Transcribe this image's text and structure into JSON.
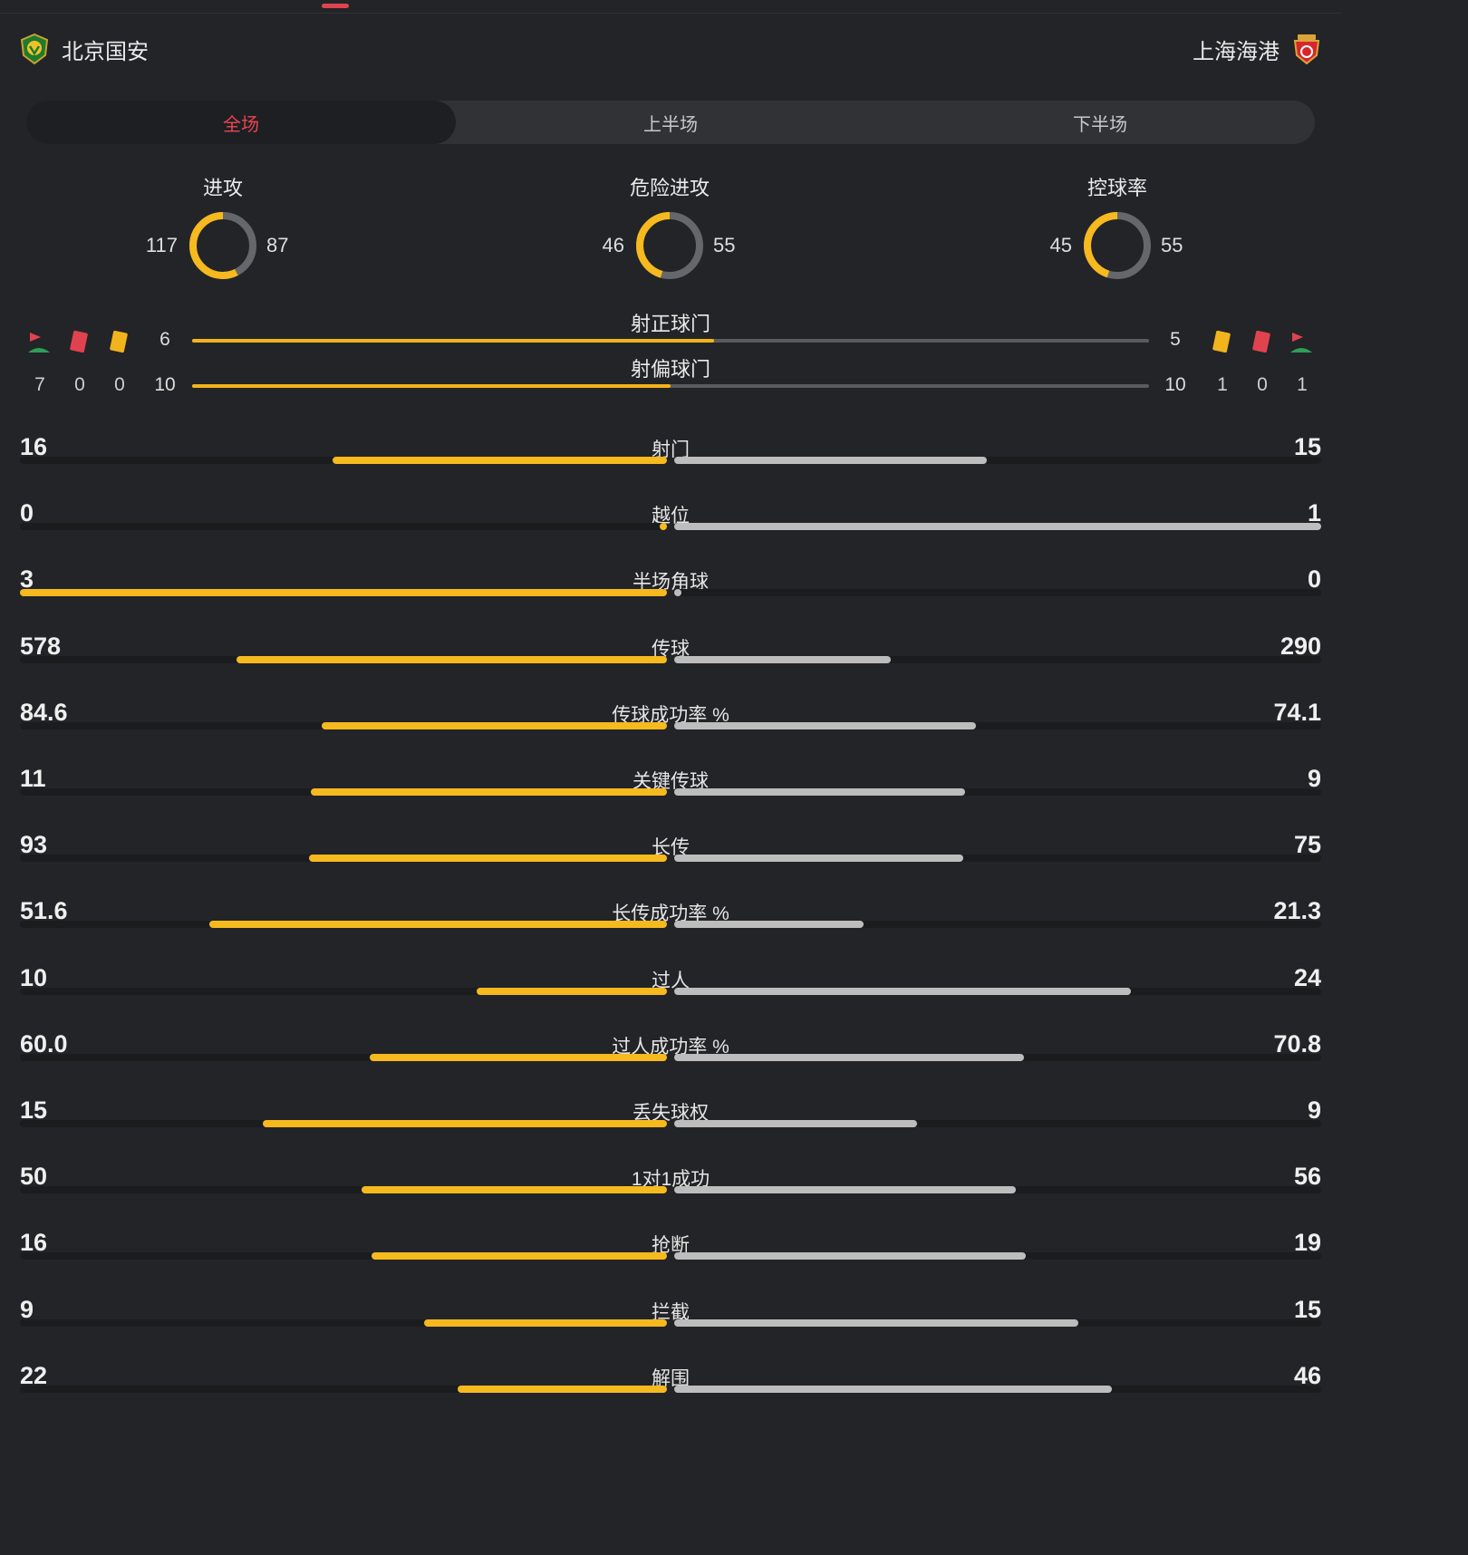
{
  "teams": {
    "home": "北京国安",
    "away": "上海海港"
  },
  "tabs": [
    "全场",
    "上半场",
    "下半场"
  ],
  "active_tab": 0,
  "colors": {
    "home": "#f6b91e",
    "away": "#bdbdbd",
    "accent": "#ea4552",
    "ring_away": "#66676b"
  },
  "rings": [
    {
      "title": "进攻",
      "home": "117",
      "away": "87"
    },
    {
      "title": "危险进攻",
      "home": "46",
      "away": "55"
    },
    {
      "title": "控球率",
      "home": "45",
      "away": "55"
    }
  ],
  "shots": [
    {
      "title": "射正球门",
      "home": "6",
      "away": "5"
    },
    {
      "title": "射偏球门",
      "home": "10",
      "away": "10"
    }
  ],
  "cards": {
    "icons": [
      "corner-flag-icon",
      "red-card-icon",
      "yellow-card-icon"
    ],
    "home": {
      "corners": "7",
      "red": "0",
      "yellow": "0"
    },
    "away": {
      "yellow": "1",
      "red": "0",
      "corners": "1"
    }
  },
  "stats": [
    {
      "label": "射门",
      "home": "16",
      "away": "15"
    },
    {
      "label": "越位",
      "home": "0",
      "away": "1"
    },
    {
      "label": "半场角球",
      "home": "3",
      "away": "0"
    },
    {
      "label": "传球",
      "home": "578",
      "away": "290"
    },
    {
      "label": "传球成功率 %",
      "home": "84.6",
      "away": "74.1"
    },
    {
      "label": "关键传球",
      "home": "11",
      "away": "9"
    },
    {
      "label": "长传",
      "home": "93",
      "away": "75"
    },
    {
      "label": "长传成功率 %",
      "home": "51.6",
      "away": "21.3"
    },
    {
      "label": "过人",
      "home": "10",
      "away": "24"
    },
    {
      "label": "过人成功率 %",
      "home": "60.0",
      "away": "70.8"
    },
    {
      "label": "丢失球权",
      "home": "15",
      "away": "9"
    },
    {
      "label": "1对1成功",
      "home": "50",
      "away": "56"
    },
    {
      "label": "抢断",
      "home": "16",
      "away": "19"
    },
    {
      "label": "拦截",
      "home": "9",
      "away": "15"
    },
    {
      "label": "解围",
      "home": "22",
      "away": "46"
    }
  ]
}
